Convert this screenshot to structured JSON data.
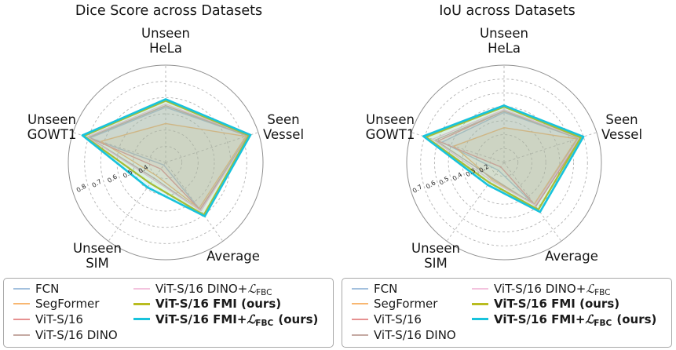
{
  "page": {
    "background": "#ffffff"
  },
  "chart_data": [
    {
      "type": "radar",
      "title": "Dice Score across Datasets",
      "categories": [
        "Unseen\nHeLa",
        "Seen\nVessel",
        "Average",
        "Unseen\nSIM",
        "Unseen\nGOWT1"
      ],
      "axis_angles_deg": [
        -90,
        -18,
        54,
        126,
        198
      ],
      "r_min": 0.3,
      "r_max": 0.9,
      "rticks": [
        0.4,
        0.5,
        0.6,
        0.7,
        0.8
      ],
      "rtick_labels": [
        "0.4",
        "0.5",
        "0.6",
        "0.7",
        "0.8"
      ],
      "grid": "dashed",
      "series": [
        {
          "name": "FCN",
          "color": "#a3c0de",
          "width": 1.4,
          "values": [
            0.64,
            0.83,
            0.66,
            0.32,
            0.79
          ]
        },
        {
          "name": "SegFormer",
          "color": "#f8b771",
          "width": 1.4,
          "values": [
            0.54,
            0.82,
            0.65,
            0.4,
            0.72
          ]
        },
        {
          "name": "ViT-S/16",
          "color": "#e69191",
          "width": 1.4,
          "values": [
            0.65,
            0.84,
            0.66,
            0.35,
            0.8
          ]
        },
        {
          "name": "ViT-S/16 DINO",
          "color": "#c5aaa3",
          "width": 1.4,
          "values": [
            0.65,
            0.83,
            0.67,
            0.42,
            0.8
          ]
        },
        {
          "name": "ViT-S/16 DINO+LFBC",
          "color": "#f3c3de",
          "width": 1.4,
          "values": [
            0.66,
            0.84,
            0.67,
            0.43,
            0.81
          ]
        },
        {
          "name": "ViT-S/16 FMI (ours)",
          "color": "#b9bc20",
          "width": 2.3,
          "values": [
            0.68,
            0.84,
            0.7,
            0.46,
            0.83
          ]
        },
        {
          "name": "ViT-S/16 FMI+LFBC (ours)",
          "color": "#18c3dc",
          "width": 2.6,
          "values": [
            0.69,
            0.85,
            0.71,
            0.49,
            0.84
          ]
        }
      ]
    },
    {
      "type": "radar",
      "title": "IoU across Datasets",
      "categories": [
        "Unseen\nHeLa",
        "Seen\nVessel",
        "Average",
        "Unseen\nSIM",
        "Unseen\nGOWT1"
      ],
      "axis_angles_deg": [
        -90,
        -18,
        54,
        126,
        198
      ],
      "r_min": 0.1,
      "r_max": 0.8,
      "rticks": [
        0.2,
        0.3,
        0.4,
        0.5,
        0.6,
        0.7
      ],
      "rtick_labels": [
        "0.2",
        "0.3",
        "0.4",
        "0.5",
        "0.6",
        "0.7"
      ],
      "grid": "dashed",
      "series": [
        {
          "name": "FCN",
          "color": "#a3c0de",
          "width": 1.4,
          "values": [
            0.46,
            0.66,
            0.49,
            0.17,
            0.57
          ]
        },
        {
          "name": "SegFormer",
          "color": "#f8b771",
          "width": 1.4,
          "values": [
            0.35,
            0.65,
            0.47,
            0.25,
            0.48
          ]
        },
        {
          "name": "ViT-S/16",
          "color": "#e69191",
          "width": 1.4,
          "values": [
            0.47,
            0.68,
            0.49,
            0.14,
            0.6
          ]
        },
        {
          "name": "ViT-S/16 DINO",
          "color": "#c5aaa3",
          "width": 1.4,
          "values": [
            0.47,
            0.66,
            0.48,
            0.24,
            0.62
          ]
        },
        {
          "name": "ViT-S/16 DINO+LFBC",
          "color": "#f3c3de",
          "width": 1.4,
          "values": [
            0.48,
            0.67,
            0.48,
            0.26,
            0.64
          ]
        },
        {
          "name": "ViT-S/16 FMI (ours)",
          "color": "#b9bc20",
          "width": 2.3,
          "values": [
            0.5,
            0.68,
            0.52,
            0.28,
            0.69
          ]
        },
        {
          "name": "ViT-S/16 FMI+LFBC (ours)",
          "color": "#18c3dc",
          "width": 2.6,
          "values": [
            0.51,
            0.7,
            0.54,
            0.3,
            0.71
          ]
        }
      ]
    }
  ],
  "legend": {
    "items": [
      {
        "main": "FCN",
        "mathcal": "",
        "sub": "",
        "suffix": "",
        "color": "#a3c0de",
        "bold": false
      },
      {
        "main": "SegFormer",
        "mathcal": "",
        "sub": "",
        "suffix": "",
        "color": "#f8b771",
        "bold": false
      },
      {
        "main": "ViT-S/16",
        "mathcal": "",
        "sub": "",
        "suffix": "",
        "color": "#e69191",
        "bold": false
      },
      {
        "main": "ViT-S/16 DINO",
        "mathcal": "",
        "sub": "",
        "suffix": "",
        "color": "#c5aaa3",
        "bold": false
      },
      {
        "main": "ViT-S/16 DINO+",
        "mathcal": "ℒ",
        "sub": "FBC",
        "suffix": "",
        "color": "#f3c3de",
        "bold": false
      },
      {
        "main": "ViT-S/16 FMI",
        "mathcal": "",
        "sub": "",
        "suffix": " (ours)",
        "color": "#b9bc20",
        "bold": true
      },
      {
        "main": "ViT-S/16 FMI+",
        "mathcal": "ℒ",
        "sub": "FBC",
        "suffix": " (ours)",
        "color": "#18c3dc",
        "bold": true
      }
    ]
  },
  "style": {
    "grid_color": "#b3b3b3",
    "spine_color": "#909090",
    "tick_label_color": "#262626",
    "fill_opacity": 0.12
  }
}
